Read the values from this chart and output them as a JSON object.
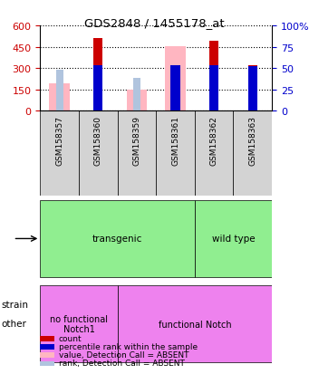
{
  "title": "GDS2848 / 1455178_at",
  "samples": [
    "GSM158357",
    "GSM158360",
    "GSM158359",
    "GSM158361",
    "GSM158362",
    "GSM158363"
  ],
  "count_values": [
    0,
    510,
    0,
    0,
    490,
    320
  ],
  "percentile_values": [
    0,
    320,
    0,
    320,
    320,
    315
  ],
  "absent_value_bars": [
    195,
    0,
    145,
    455,
    0,
    0
  ],
  "absent_rank_markers": [
    290,
    0,
    230,
    320,
    0,
    0
  ],
  "ylim_left": [
    0,
    600
  ],
  "ylim_right": [
    0,
    100
  ],
  "yticks_left": [
    0,
    150,
    300,
    450,
    600
  ],
  "yticks_right": [
    0,
    25,
    50,
    75,
    100
  ],
  "strain_groups": [
    {
      "label": "transgenic",
      "span": [
        0,
        4
      ],
      "color": "#90EE90"
    },
    {
      "label": "wild type",
      "span": [
        4,
        6
      ],
      "color": "#90EE90"
    }
  ],
  "other_groups": [
    {
      "label": "no functional\nNotch1",
      "span": [
        0,
        2
      ],
      "color": "#EE82EE"
    },
    {
      "label": "functional Notch",
      "span": [
        2,
        6
      ],
      "color": "#EE82EE"
    }
  ],
  "bar_color_count": "#CC0000",
  "bar_color_percentile": "#0000CC",
  "bar_color_absent_value": "#FFB6C1",
  "bar_color_absent_rank": "#B0C4DE",
  "bar_width": 0.35,
  "background_plot": "#FFFFFF",
  "xlabel_color_left": "#CC0000",
  "xlabel_color_right": "#0000CC",
  "grid_style": "dotted"
}
